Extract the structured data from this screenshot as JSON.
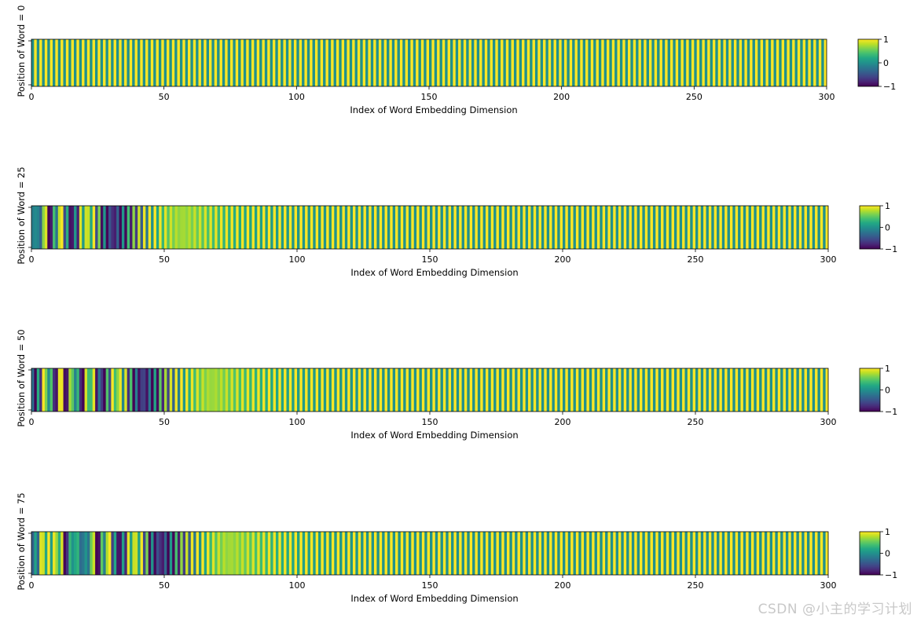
{
  "chart_data": [
    {
      "type": "heatmap",
      "position": 0,
      "ylabel": "Position of Word = 0",
      "xlabel": "Index of Word Embedding Dimension",
      "xlim": [
        0,
        300
      ],
      "xticks": [
        "0",
        "50",
        "100",
        "150",
        "200",
        "250",
        "300"
      ],
      "colormap": "viridis",
      "vmin": -1,
      "vmax": 1,
      "values": "sin(pos / 10000^(2i/300)) for even dims, cos(...) for odd dims, i = dim index (300 dims)",
      "colorbar_ticks": [
        "1",
        "0",
        "−1"
      ]
    },
    {
      "type": "heatmap",
      "position": 25,
      "ylabel": "Position of Word = 25",
      "xlabel": "Index of Word Embedding Dimension",
      "xlim": [
        0,
        300
      ],
      "xticks": [
        "0",
        "50",
        "100",
        "150",
        "200",
        "250",
        "300"
      ],
      "colormap": "viridis",
      "vmin": -1,
      "vmax": 1,
      "values": "sin(pos / 10000^(2i/300)) for even dims, cos(...) for odd dims, i = dim index (300 dims)",
      "colorbar_ticks": [
        "1",
        "0",
        "−1"
      ]
    },
    {
      "type": "heatmap",
      "position": 50,
      "ylabel": "Position of Word = 50",
      "xlabel": "Index of Word Embedding Dimension",
      "xlim": [
        0,
        300
      ],
      "xticks": [
        "0",
        "50",
        "100",
        "150",
        "200",
        "250",
        "300"
      ],
      "colormap": "viridis",
      "vmin": -1,
      "vmax": 1,
      "values": "sin(pos / 10000^(2i/300)) for even dims, cos(...) for odd dims, i = dim index (300 dims)",
      "colorbar_ticks": [
        "1",
        "0",
        "−1"
      ]
    },
    {
      "type": "heatmap",
      "position": 75,
      "ylabel": "Position of Word = 75",
      "xlabel": "Index of Word Embedding Dimension",
      "xlim": [
        0,
        300
      ],
      "xticks": [
        "0",
        "50",
        "100",
        "150",
        "200",
        "250",
        "300"
      ],
      "colormap": "viridis",
      "vmin": -1,
      "vmax": 1,
      "values": "sin(pos / 10000^(2i/300)) for even dims, cos(...) for odd dims, i = dim index (300 dims)",
      "colorbar_ticks": [
        "1",
        "0",
        "−1"
      ]
    }
  ],
  "watermark": "CSDN @小主的学习计划",
  "colors": {
    "viridis": [
      "#440154",
      "#482475",
      "#414487",
      "#355f8d",
      "#2a788e",
      "#21918c",
      "#22a884",
      "#44bf70",
      "#7ad151",
      "#bddf26",
      "#fde725"
    ]
  }
}
